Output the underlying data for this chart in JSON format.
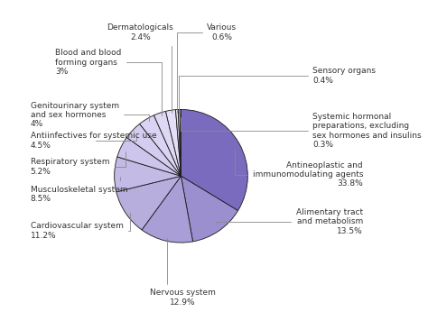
{
  "values": [
    33.8,
    13.5,
    12.9,
    11.2,
    8.5,
    5.2,
    4.5,
    4.0,
    3.0,
    2.4,
    0.6,
    0.4,
    0.3
  ],
  "colors": [
    "#7B6BBF",
    "#9B8FD0",
    "#A99ED5",
    "#B8AEDE",
    "#C4BAE6",
    "#CEC5EC",
    "#D5CDF0",
    "#DAD3F3",
    "#DED8F5",
    "#E4DEF8",
    "#EAE6FA",
    "#EDEAFA",
    "#F0EDFB"
  ],
  "labels": [
    "Antineoplastic and\nimmunomodulating agents\n33.8%",
    "Alimentary tract\nand metabolism\n13.5%",
    "Nervous system\n12.9%",
    "Cardiovascular system\n11.2%",
    "Musculoskeletal system\n8.5%",
    "Respiratory system\n5.2%",
    "Antiinfectives for systemic use\n4.5%",
    "Genitourinary system\nand sex hormones\n4%",
    "Blood and blood\nforming organs\n3%",
    "Dermatologicals\n2.4%",
    "Various\n0.6%",
    "Sensory organs\n0.4%",
    "Systemic hormonal\npreparations, excluding\nsex hormones and insulins\n0.3%"
  ],
  "startangle": 90,
  "background_color": "#ffffff",
  "edge_color": "#1a1a1a",
  "text_color": "#333333",
  "font_size": 6.5,
  "line_color": "#888888"
}
